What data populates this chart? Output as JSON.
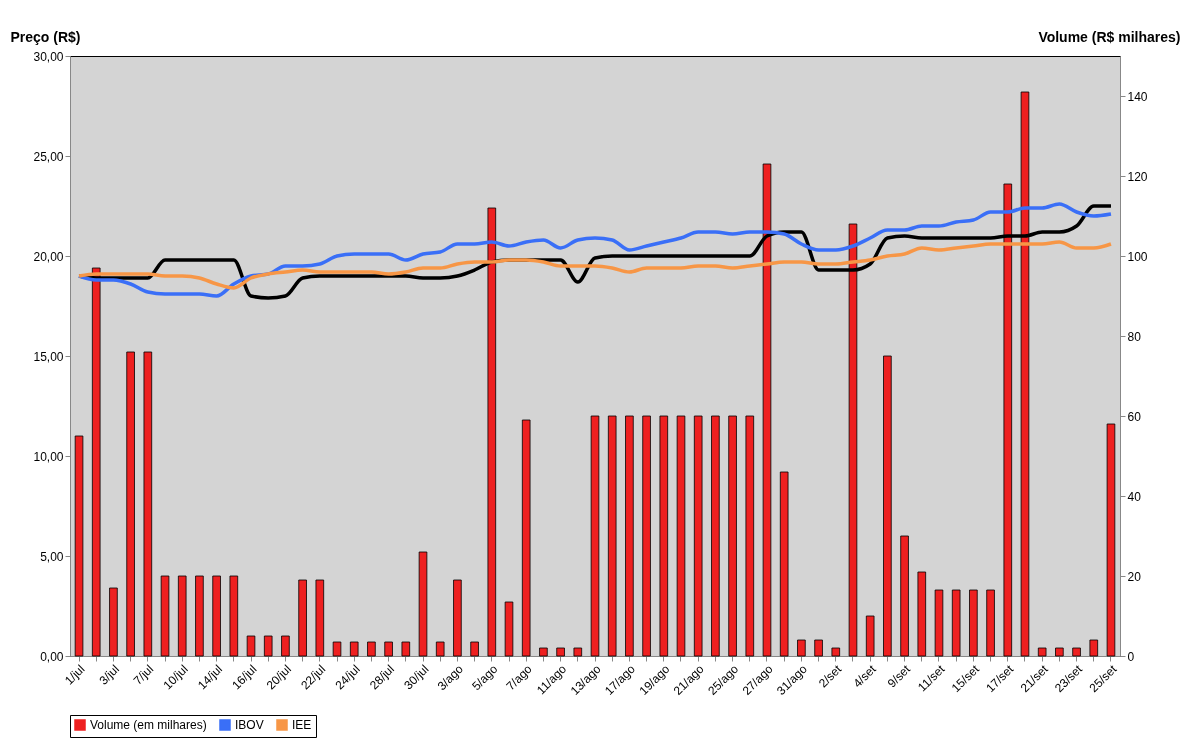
{
  "chart_data": {
    "type": "bar",
    "ylabel": "Preço (R$)",
    "y2label": "Volume (R$ milhares)",
    "categories": [
      "1/jul",
      null,
      "3/jul",
      null,
      "7/jul",
      null,
      "10/jul",
      null,
      "14/jul",
      null,
      "16/jul",
      null,
      "20/jul",
      null,
      "22/jul",
      null,
      "24/jul",
      null,
      "28/jul",
      null,
      "30/jul",
      null,
      "3/ago",
      null,
      "5/ago",
      null,
      "7/ago",
      null,
      "11/ago",
      null,
      "13/ago",
      null,
      "17/ago",
      null,
      "19/ago",
      null,
      "21/ago",
      null,
      "25/ago",
      null,
      "27/ago",
      null,
      "31/ago",
      null,
      "2/set",
      null,
      "4/set",
      null,
      "9/set",
      null,
      "11/set",
      null,
      "15/set",
      null,
      "17/set",
      null,
      "21/set",
      null,
      "23/set",
      null,
      "25/set"
    ],
    "series": [
      {
        "name": "Volume (em milhares)",
        "axis": "y2",
        "color": "#ee2020",
        "values": [
          55,
          97,
          17,
          76,
          76,
          20,
          20,
          20,
          20,
          20,
          5,
          5,
          5,
          19,
          19,
          3.5,
          3.5,
          3.5,
          3.5,
          3.5,
          26,
          3.5,
          19,
          3.5,
          112,
          13.5,
          59,
          2,
          2,
          2,
          60,
          60,
          60,
          60,
          60,
          60,
          60,
          60,
          60,
          60,
          123,
          46,
          4,
          4,
          2,
          108,
          10,
          75,
          30,
          21,
          16.5,
          16.5,
          16.5,
          16.5,
          118,
          141,
          2,
          2,
          2,
          4,
          58
        ]
      },
      {
        "type": "line",
        "color": "#000000",
        "values": [
          19.0,
          18.9,
          18.9,
          18.9,
          18.9,
          19.8,
          19.8,
          19.8,
          19.8,
          19.8,
          18.0,
          17.9,
          18.0,
          18.9,
          19.0,
          19.0,
          19.0,
          19.0,
          19.0,
          19.0,
          18.9,
          18.9,
          19.0,
          19.3,
          19.7,
          19.8,
          19.8,
          19.8,
          19.8,
          18.7,
          19.9,
          20.0,
          20.0,
          20.0,
          20.0,
          20.0,
          20.0,
          20.0,
          20.0,
          20.0,
          21.0,
          21.2,
          21.2,
          19.3,
          19.3,
          19.3,
          19.6,
          20.9,
          21.0,
          20.9,
          20.9,
          20.9,
          20.9,
          20.9,
          21.0,
          21.0,
          21.2,
          21.2,
          21.5,
          22.5,
          22.5
        ]
      },
      {
        "name": "IBOV",
        "type": "line",
        "color": "#3a6ff7",
        "values": [
          19.0,
          18.8,
          18.8,
          18.6,
          18.2,
          18.1,
          18.1,
          18.1,
          18.0,
          18.6,
          19.0,
          19.1,
          19.5,
          19.5,
          19.6,
          20.0,
          20.1,
          20.1,
          20.1,
          19.8,
          20.1,
          20.2,
          20.6,
          20.6,
          20.7,
          20.5,
          20.7,
          20.8,
          20.4,
          20.8,
          20.9,
          20.8,
          20.3,
          20.5,
          20.7,
          20.9,
          21.2,
          21.2,
          21.1,
          21.2,
          21.2,
          21.1,
          20.6,
          20.3,
          20.3,
          20.5,
          20.9,
          21.3,
          21.3,
          21.5,
          21.5,
          21.7,
          21.8,
          22.2,
          22.2,
          22.4,
          22.4,
          22.6,
          22.2,
          22.0,
          22.1
        ]
      },
      {
        "name": "IEE",
        "type": "line",
        "color": "#f79646",
        "values": [
          19.0,
          19.1,
          19.1,
          19.1,
          19.1,
          19.0,
          19.0,
          18.9,
          18.6,
          18.4,
          18.9,
          19.1,
          19.2,
          19.3,
          19.2,
          19.2,
          19.2,
          19.2,
          19.1,
          19.2,
          19.4,
          19.4,
          19.6,
          19.7,
          19.7,
          19.8,
          19.8,
          19.7,
          19.5,
          19.5,
          19.5,
          19.4,
          19.2,
          19.4,
          19.4,
          19.4,
          19.5,
          19.5,
          19.4,
          19.5,
          19.6,
          19.7,
          19.7,
          19.6,
          19.6,
          19.7,
          19.8,
          20.0,
          20.1,
          20.4,
          20.3,
          20.4,
          20.5,
          20.6,
          20.6,
          20.6,
          20.6,
          20.7,
          20.4,
          20.4,
          20.6
        ]
      }
    ],
    "ylim": [
      0,
      30
    ],
    "yticks": [
      {
        "value": 0,
        "label": "0,00"
      },
      {
        "value": 5,
        "label": "5,00"
      },
      {
        "value": 10,
        "label": "10,00"
      },
      {
        "value": 15,
        "label": "15,00"
      },
      {
        "value": 20,
        "label": "20,00"
      },
      {
        "value": 25,
        "label": "25,00"
      },
      {
        "value": 30,
        "label": "30,00"
      }
    ],
    "y2lim": [
      0,
      150
    ],
    "y2ticks": [
      0,
      20,
      40,
      60,
      80,
      100,
      120,
      140
    ],
    "legend": "bottom",
    "grid": false
  }
}
